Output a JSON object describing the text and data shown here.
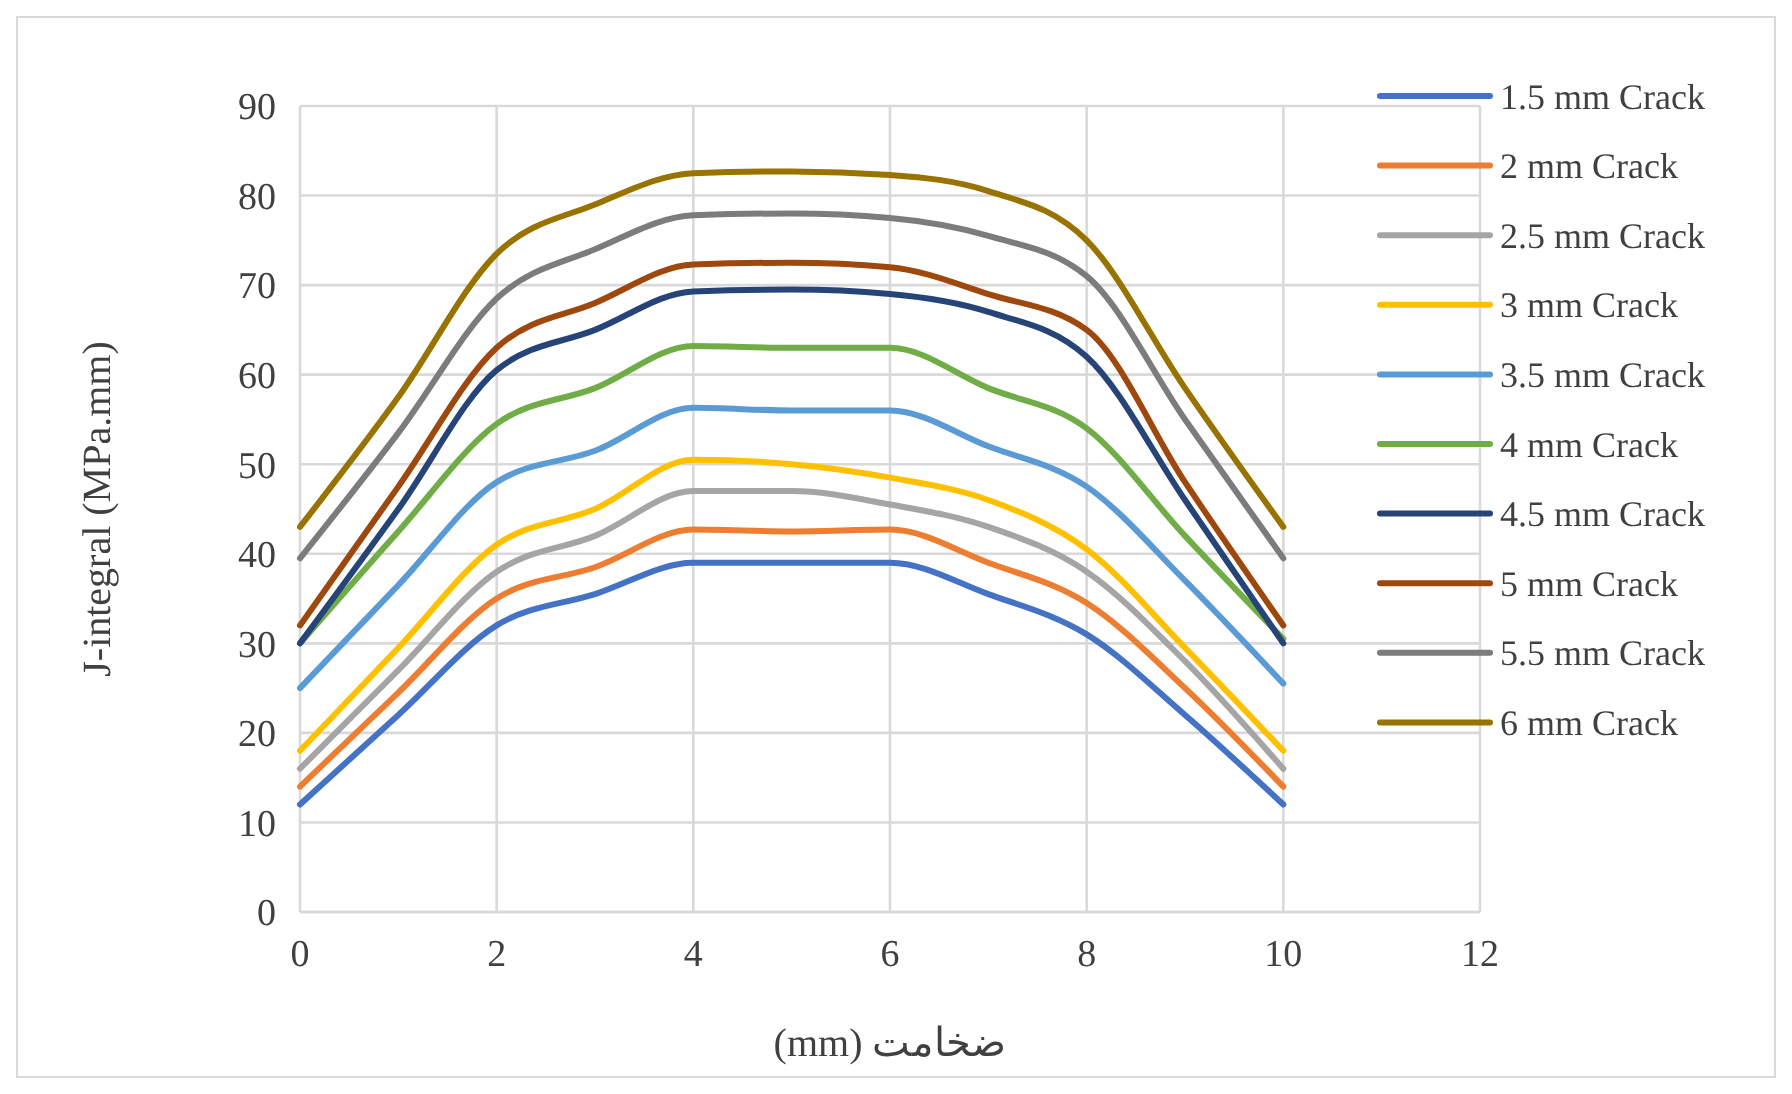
{
  "chart_data": {
    "type": "line",
    "xlabel": "ضخامت (mm)",
    "ylabel": "J-integral (MPa.mm)",
    "x": [
      0,
      1,
      2,
      3,
      4,
      5,
      6,
      7,
      8,
      9,
      10
    ],
    "xlim": [
      0,
      12
    ],
    "xticks": [
      0,
      2,
      4,
      6,
      8,
      10,
      12
    ],
    "ylim": [
      0,
      90
    ],
    "yticks": [
      0,
      10,
      20,
      30,
      40,
      50,
      60,
      70,
      80,
      90
    ],
    "grid": true,
    "legend": "right",
    "marker": "none",
    "line_style": "solid",
    "series": [
      {
        "name": "1.5 mm Crack",
        "color": "#4472c4",
        "values": [
          12,
          22,
          32,
          35.5,
          39,
          39,
          39,
          35.5,
          31,
          22,
          12
        ]
      },
      {
        "name": "2 mm Crack",
        "color": "#ed7d31",
        "values": [
          14,
          24.5,
          35,
          38.5,
          42.7,
          42.5,
          42.7,
          39,
          34.5,
          25,
          14
        ]
      },
      {
        "name": "2.5 mm Crack",
        "color": "#a5a5a5",
        "values": [
          16,
          27,
          38,
          42,
          47,
          47,
          45.5,
          43,
          38,
          28,
          16
        ]
      },
      {
        "name": "3 mm Crack",
        "color": "#ffc000",
        "values": [
          18,
          29.5,
          41,
          45,
          50.5,
          50,
          48.5,
          46,
          40.5,
          29.5,
          18
        ]
      },
      {
        "name": "3.5 mm Crack",
        "color": "#5b9bd5",
        "values": [
          25,
          36.5,
          48,
          51.5,
          56.3,
          56,
          56,
          52,
          47.5,
          37,
          25.5
        ]
      },
      {
        "name": "4 mm Crack",
        "color": "#70ad47",
        "values": [
          30,
          42.5,
          54.5,
          58.5,
          63.2,
          63,
          63,
          58.5,
          54,
          42,
          30.5
        ]
      },
      {
        "name": "4.5 mm Crack",
        "color": "#264478",
        "values": [
          30,
          45,
          60.5,
          65,
          69.3,
          69.5,
          69,
          67,
          62,
          46,
          30
        ]
      },
      {
        "name": "5 mm Crack",
        "color": "#9e480e",
        "values": [
          32,
          47.5,
          63,
          68,
          72.3,
          72.5,
          72,
          69,
          65,
          48,
          32
        ]
      },
      {
        "name": "5.5 mm Crack",
        "color": "#7c7c7c",
        "values": [
          39.5,
          53.5,
          68.5,
          74,
          77.8,
          78,
          77.5,
          75.5,
          71,
          55,
          39.5
        ]
      },
      {
        "name": "6 mm Crack",
        "color": "#997300",
        "values": [
          43,
          57.5,
          73.5,
          79,
          82.5,
          82.7,
          82.3,
          80.5,
          75,
          58.5,
          43
        ]
      }
    ]
  }
}
